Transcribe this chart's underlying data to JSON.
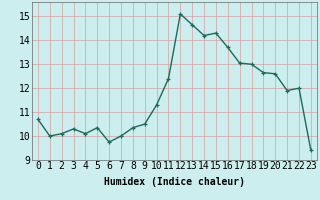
{
  "x": [
    0,
    1,
    2,
    3,
    4,
    5,
    6,
    7,
    8,
    9,
    10,
    11,
    12,
    13,
    14,
    15,
    16,
    17,
    18,
    19,
    20,
    21,
    22,
    23
  ],
  "y": [
    10.7,
    10.0,
    10.1,
    10.3,
    10.1,
    10.35,
    9.75,
    10.0,
    10.35,
    10.5,
    11.3,
    12.4,
    15.1,
    14.65,
    14.2,
    14.3,
    13.7,
    13.05,
    13.0,
    12.65,
    12.6,
    11.9,
    12.0,
    9.4
  ],
  "line_color": "#1a6b5a",
  "marker_color": "#1a6b5a",
  "bg_color": "#cceeee",
  "grid_color": "#d4a0a0",
  "xlabel": "Humidex (Indice chaleur)",
  "ylabel_ticks": [
    9,
    10,
    11,
    12,
    13,
    14,
    15
  ],
  "xlim": [
    -0.5,
    23.5
  ],
  "ylim": [
    9.0,
    15.6
  ],
  "xtick_labels": [
    "0",
    "1",
    "2",
    "3",
    "4",
    "5",
    "6",
    "7",
    "8",
    "9",
    "10",
    "11",
    "12",
    "13",
    "14",
    "15",
    "16",
    "17",
    "18",
    "19",
    "20",
    "21",
    "22",
    "23"
  ],
  "title_color": "#000000",
  "font_size": 7.0,
  "marker_size": 3.0,
  "line_width": 1.0
}
